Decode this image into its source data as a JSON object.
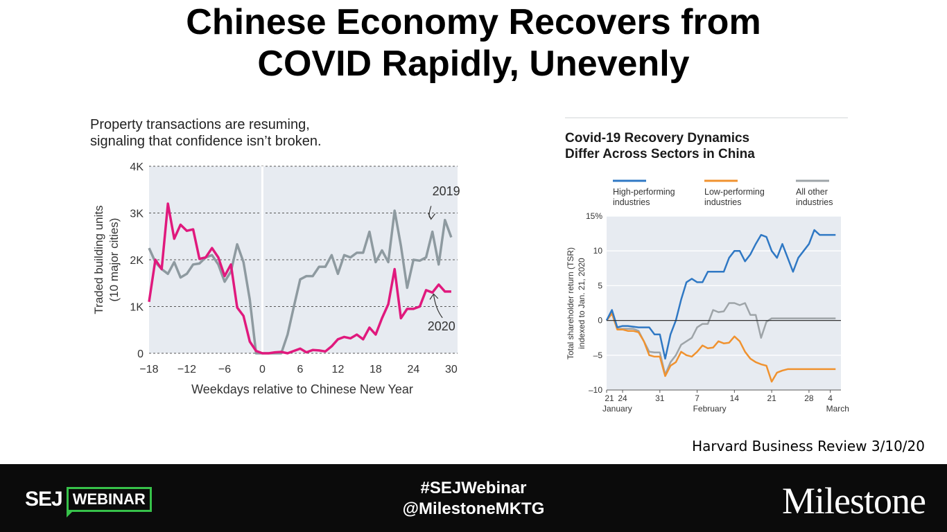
{
  "slide": {
    "title_line1": "Chinese Economy Recovers from",
    "title_line2": "COVID Rapidly, Unevenly",
    "source": "Harvard Business Review 3/10/20"
  },
  "footer": {
    "sej": "SEJ",
    "webinar": "WEBINAR",
    "hashtag": "#SEJWebinar",
    "handle": "@MilestoneMKTG",
    "brand": "Milestone",
    "accent_color": "#37c24a"
  },
  "chart_data": [
    {
      "type": "line",
      "title": "Property transactions are resuming, signaling that confidence isn’t broken.",
      "title_line1": "Property transactions are resuming,",
      "title_line2": "signaling that confidence isn’t broken.",
      "xlabel": "Weekdays relative to Chinese New Year",
      "ylabel_line1": "Traded building units",
      "ylabel_line2": "(10 major cities)",
      "xlim": [
        -18,
        31
      ],
      "ylim": [
        0,
        4000
      ],
      "x_ticks": [
        -18,
        -12,
        -6,
        0,
        6,
        12,
        18,
        24,
        30
      ],
      "x_tick_labels": [
        "−18",
        "−12",
        "−6",
        "0",
        "6",
        "12",
        "18",
        "24",
        "30"
      ],
      "y_ticks": [
        0,
        1000,
        2000,
        3000,
        4000
      ],
      "y_tick_labels": [
        "0",
        "1K",
        "2K",
        "3K",
        "4K"
      ],
      "grid": "horizontal-dashed",
      "background": "#e7ebf1",
      "series": [
        {
          "name": "2019",
          "color": "#8e9aa0",
          "x": [
            -18,
            -17,
            -16,
            -15,
            -14,
            -13,
            -12,
            -11,
            -10,
            -9,
            -8,
            -7,
            -6,
            -5,
            -4,
            -3,
            -2,
            -1,
            0,
            1,
            2,
            3,
            4,
            5,
            6,
            7,
            8,
            9,
            10,
            11,
            12,
            13,
            14,
            15,
            16,
            17,
            18,
            19,
            20,
            21,
            22,
            23,
            24,
            25,
            26,
            27,
            28,
            29,
            30
          ],
          "values": [
            2250,
            1950,
            1800,
            1700,
            1950,
            1620,
            1700,
            1900,
            1920,
            2050,
            2100,
            1900,
            1530,
            1750,
            2330,
            1950,
            1150,
            0,
            0,
            0,
            0,
            0,
            400,
            1000,
            1580,
            1650,
            1650,
            1850,
            1850,
            2100,
            1700,
            2100,
            2050,
            2150,
            2150,
            2600,
            1950,
            2200,
            1950,
            3050,
            2300,
            1400,
            2000,
            1980,
            2050,
            2600,
            1900,
            2850,
            2480
          ]
        },
        {
          "name": "2020",
          "color": "#e0197d",
          "x": [
            -18,
            -17,
            -16,
            -15,
            -14,
            -13,
            -12,
            -11,
            -10,
            -9,
            -8,
            -7,
            -6,
            -5,
            -4,
            -3,
            -2,
            -1,
            0,
            1,
            2,
            3,
            4,
            5,
            6,
            7,
            8,
            9,
            10,
            11,
            12,
            13,
            14,
            15,
            16,
            17,
            18,
            19,
            20,
            21,
            22,
            23,
            24,
            25,
            26,
            27,
            28,
            29,
            30
          ],
          "values": [
            1100,
            2000,
            1800,
            3200,
            2450,
            2750,
            2620,
            2650,
            2020,
            2050,
            2250,
            2050,
            1650,
            1900,
            980,
            800,
            250,
            50,
            0,
            0,
            20,
            30,
            0,
            50,
            100,
            20,
            70,
            60,
            40,
            150,
            300,
            350,
            320,
            400,
            300,
            550,
            400,
            750,
            1050,
            1800,
            750,
            950,
            950,
            1000,
            1350,
            1300,
            1470,
            1320,
            1320
          ]
        }
      ],
      "annotations": [
        {
          "text": "2019",
          "x": 27,
          "y": 3200
        },
        {
          "text": "2020",
          "x": 28,
          "y": 700
        }
      ]
    },
    {
      "type": "line",
      "title": "Covid-19 Recovery Dynamics Differ Across Sectors in China",
      "title_line1": "Covid-19 Recovery Dynamics",
      "title_line2": "Differ Across Sectors in China",
      "ylabel_line1": "Total shareholder return (TSR)",
      "ylabel_line2": "indexed to Jan. 21, 2020",
      "xlabel": "",
      "ylim": [
        -10,
        15
      ],
      "y_ticks": [
        15,
        10,
        5,
        0,
        -5,
        -10
      ],
      "y_tick_labels": [
        "15%",
        "10",
        "5",
        "0",
        "–5",
        "–10"
      ],
      "x_tick_labels": [
        {
          "day": 0,
          "label": "21",
          "sub": "January"
        },
        {
          "day": 3,
          "label": "24",
          "sub": ""
        },
        {
          "day": 10,
          "label": "31",
          "sub": ""
        },
        {
          "day": 17,
          "label": "7",
          "sub": "February"
        },
        {
          "day": 24,
          "label": "14",
          "sub": ""
        },
        {
          "day": 31,
          "label": "21",
          "sub": ""
        },
        {
          "day": 38,
          "label": "28",
          "sub": ""
        },
        {
          "day": 42,
          "label": "4",
          "sub": "March"
        }
      ],
      "xlim": [
        0,
        44
      ],
      "grid": "horizontal",
      "legend_position": "top",
      "background": "#e7ebf1",
      "series": [
        {
          "name": "High-performing industries",
          "name_line1": "High-performing",
          "name_line2": "industries",
          "color": "#2f78c4",
          "x": [
            0,
            1,
            2,
            3,
            4,
            5,
            6,
            7,
            8,
            9,
            10,
            11,
            12,
            13,
            14,
            15,
            16,
            17,
            18,
            19,
            20,
            21,
            22,
            23,
            24,
            25,
            26,
            27,
            28,
            29,
            30,
            31,
            32,
            33,
            34,
            35,
            36,
            37,
            38,
            39,
            40,
            41,
            42,
            43
          ],
          "values": [
            0,
            1.5,
            -1,
            -0.8,
            -0.8,
            -0.9,
            -1,
            -1,
            -1,
            -2,
            -2,
            -5.5,
            -2,
            0,
            3,
            5.5,
            6,
            5.5,
            5.5,
            7,
            7,
            7,
            7,
            9,
            10,
            10,
            8.5,
            9.5,
            11,
            12.3,
            12,
            10,
            9,
            11,
            9,
            7,
            9,
            10,
            11,
            13,
            12.3,
            12.3,
            12.3,
            12.3
          ]
        },
        {
          "name": "Low-performing industries",
          "name_line1": "Low-performing",
          "name_line2": "industries",
          "color": "#f0922f",
          "x": [
            0,
            1,
            2,
            3,
            4,
            5,
            6,
            7,
            8,
            9,
            10,
            11,
            12,
            13,
            14,
            15,
            16,
            17,
            18,
            19,
            20,
            21,
            22,
            23,
            24,
            25,
            26,
            27,
            28,
            29,
            30,
            31,
            32,
            33,
            34,
            35,
            36,
            37,
            38,
            39,
            40,
            41,
            42,
            43
          ],
          "values": [
            0,
            1,
            -1.3,
            -1.3,
            -1.5,
            -1.5,
            -1.7,
            -3,
            -5,
            -5.2,
            -5.2,
            -8,
            -6.5,
            -6,
            -4.5,
            -5,
            -5.2,
            -4.5,
            -3.6,
            -4,
            -3.9,
            -3,
            -3.3,
            -3.2,
            -2.3,
            -3,
            -4.5,
            -5.5,
            -6,
            -6.3,
            -6.5,
            -8.8,
            -7.5,
            -7.2,
            -7,
            -7,
            -7,
            -7,
            -7,
            -7,
            -7,
            -7,
            -7,
            -7
          ]
        },
        {
          "name": "All other industries",
          "name_line1": "All other",
          "name_line2": "industries",
          "color": "#9ea4a8",
          "x": [
            0,
            1,
            2,
            3,
            4,
            5,
            6,
            7,
            8,
            9,
            10,
            11,
            12,
            13,
            14,
            15,
            16,
            17,
            18,
            19,
            20,
            21,
            22,
            23,
            24,
            25,
            26,
            27,
            28,
            29,
            30,
            31,
            32,
            33,
            34,
            35,
            36,
            37,
            38,
            39,
            40,
            41,
            42,
            43
          ],
          "values": [
            0,
            1.2,
            -1.2,
            -1.2,
            -1.2,
            -1.2,
            -1.5,
            -3,
            -4.5,
            -4.6,
            -4.6,
            -7.8,
            -6,
            -5,
            -3.5,
            -3,
            -2.5,
            -1,
            -0.5,
            -0.5,
            1.5,
            1.2,
            1.3,
            2.5,
            2.5,
            2.2,
            2.5,
            0.8,
            0.8,
            -2.5,
            -0.2,
            0.3,
            0.3,
            0.3,
            0.3,
            0.3,
            0.3,
            0.3,
            0.3,
            0.3,
            0.3,
            0.3,
            0.3,
            0.3
          ]
        }
      ]
    }
  ]
}
